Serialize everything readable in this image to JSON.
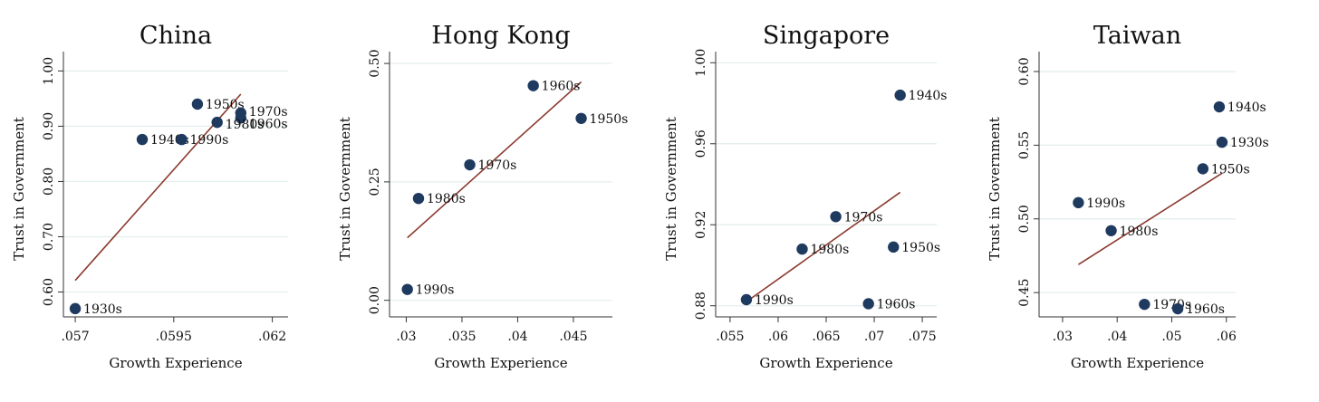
{
  "colors": {
    "point": "#1f3a5f",
    "fit_line": "#8b3a2f",
    "grid": "#e3eeee",
    "axis": "#333333"
  },
  "chart_data": [
    {
      "type": "scatter",
      "title": "China",
      "xlabel": "Growth Experience",
      "ylabel": "Trust in Government",
      "xlim": [
        0.0567,
        0.0624
      ],
      "ylim": [
        0.555,
        1.035
      ],
      "xticks": [
        0.057,
        0.0595,
        0.062
      ],
      "xtick_labels": [
        ".057",
        ".0595",
        ".062"
      ],
      "yticks": [
        0.6,
        0.7,
        0.8,
        0.9,
        1.0
      ],
      "ytick_labels": [
        "0.60",
        "0.70",
        "0.80",
        "0.90",
        "1.00"
      ],
      "points": [
        {
          "label": "1930s",
          "x": 0.057,
          "y": 0.57
        },
        {
          "label": "1940s",
          "x": 0.0587,
          "y": 0.876
        },
        {
          "label": "1950s",
          "x": 0.0601,
          "y": 0.94
        },
        {
          "label": "1960s",
          "x": 0.0612,
          "y": 0.915
        },
        {
          "label": "1970s",
          "x": 0.0612,
          "y": 0.924
        },
        {
          "label": "1980s",
          "x": 0.0606,
          "y": 0.907
        },
        {
          "label": "1990s",
          "x": 0.0597,
          "y": 0.876
        }
      ],
      "fit_line": {
        "x": [
          0.057,
          0.0612
        ],
        "y": [
          0.621,
          0.958
        ]
      }
    },
    {
      "type": "scatter",
      "title": "Hong Kong",
      "xlabel": "Growth Experience",
      "ylabel": "Trust in Government",
      "xlim": [
        0.0285,
        0.0485
      ],
      "ylim": [
        -0.035,
        0.525
      ],
      "xticks": [
        0.03,
        0.035,
        0.04,
        0.045
      ],
      "xtick_labels": [
        ".03",
        ".035",
        ".04",
        ".045"
      ],
      "yticks": [
        0.0,
        0.25,
        0.5
      ],
      "ytick_labels": [
        "0.00",
        "0.25",
        "0.50"
      ],
      "points": [
        {
          "label": "1960s",
          "x": 0.0414,
          "y": 0.453
        },
        {
          "label": "1950s",
          "x": 0.0457,
          "y": 0.384
        },
        {
          "label": "1970s",
          "x": 0.0357,
          "y": 0.286
        },
        {
          "label": "1980s",
          "x": 0.0311,
          "y": 0.215
        },
        {
          "label": "1990s",
          "x": 0.0301,
          "y": 0.023
        }
      ],
      "fit_line": {
        "x": [
          0.0301,
          0.0457
        ],
        "y": [
          0.132,
          0.461
        ]
      }
    },
    {
      "type": "scatter",
      "title": "Singapore",
      "xlabel": "Growth Experience",
      "ylabel": "Trust in Government",
      "xlim": [
        0.0535,
        0.0765
      ],
      "ylim": [
        0.8745,
        1.0055
      ],
      "xticks": [
        0.055,
        0.06,
        0.065,
        0.07,
        0.075
      ],
      "xtick_labels": [
        ".055",
        ".06",
        ".065",
        ".07",
        ".075"
      ],
      "yticks": [
        0.88,
        0.92,
        0.96,
        1.0
      ],
      "ytick_labels": [
        "0.88",
        "0.92",
        "0.96",
        "1.00"
      ],
      "points": [
        {
          "label": "1940s",
          "x": 0.0727,
          "y": 0.984
        },
        {
          "label": "1970s",
          "x": 0.066,
          "y": 0.924
        },
        {
          "label": "1980s",
          "x": 0.0625,
          "y": 0.908
        },
        {
          "label": "1950s",
          "x": 0.072,
          "y": 0.909
        },
        {
          "label": "1990s",
          "x": 0.0567,
          "y": 0.883
        },
        {
          "label": "1960s",
          "x": 0.0694,
          "y": 0.881
        }
      ],
      "fit_line": {
        "x": [
          0.0567,
          0.0727
        ],
        "y": [
          0.882,
          0.936
        ]
      }
    },
    {
      "type": "scatter",
      "title": "Taiwan",
      "xlabel": "Growth Experience",
      "ylabel": "Trust in Government",
      "xlim": [
        0.0257,
        0.0617
      ],
      "ylim": [
        0.4335,
        0.6135
      ],
      "xticks": [
        0.03,
        0.04,
        0.05,
        0.06
      ],
      "xtick_labels": [
        ".03",
        ".04",
        ".05",
        ".06"
      ],
      "yticks": [
        0.45,
        0.5,
        0.55,
        0.6
      ],
      "ytick_labels": [
        "0.45",
        "0.50",
        "0.55",
        "0.60"
      ],
      "points": [
        {
          "label": "1940s",
          "x": 0.0587,
          "y": 0.576
        },
        {
          "label": "1930s",
          "x": 0.0592,
          "y": 0.552
        },
        {
          "label": "1950s",
          "x": 0.0557,
          "y": 0.534
        },
        {
          "label": "1990s",
          "x": 0.0329,
          "y": 0.511
        },
        {
          "label": "1980s",
          "x": 0.0389,
          "y": 0.492
        },
        {
          "label": "1970s",
          "x": 0.045,
          "y": 0.442
        },
        {
          "label": "1960s",
          "x": 0.0511,
          "y": 0.439
        }
      ],
      "fit_line": {
        "x": [
          0.0329,
          0.0592
        ],
        "y": [
          0.469,
          0.531
        ]
      }
    }
  ]
}
